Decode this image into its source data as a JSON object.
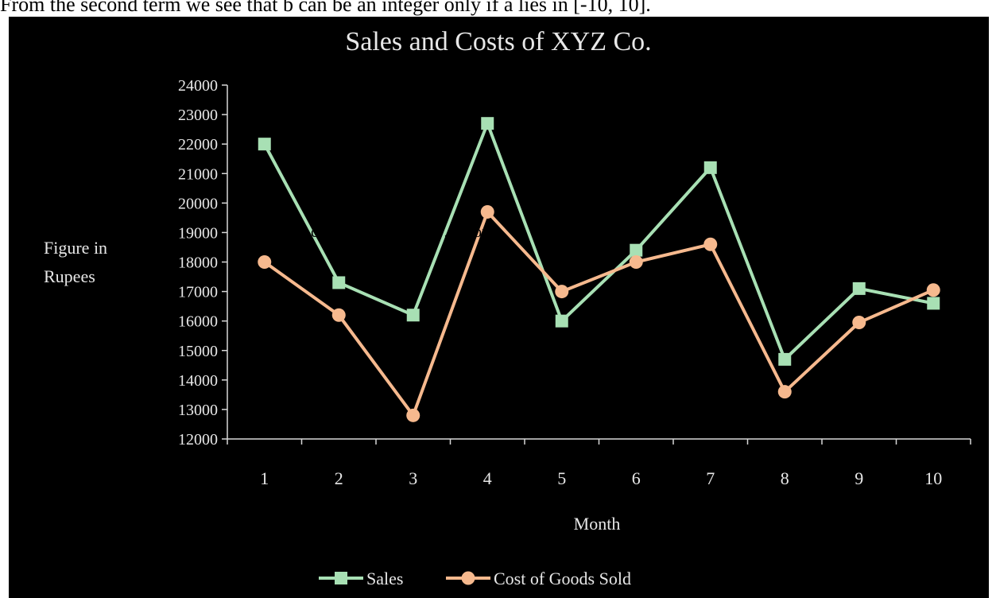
{
  "page": {
    "top_text": "From the second term we see that b can be an integer only if a lies in [-10, 10].",
    "overlay_text": "c… …f the u… …p… …or"
  },
  "chart_data": {
    "type": "line",
    "title": "Sales and Costs of XYZ Co.",
    "xlabel": "Month",
    "ylabel": "Figure in Rupees",
    "categories": [
      "1",
      "2",
      "3",
      "4",
      "5",
      "6",
      "7",
      "8",
      "9",
      "10"
    ],
    "ylim": [
      12000,
      24000
    ],
    "yticks": [
      12000,
      13000,
      14000,
      15000,
      16000,
      17000,
      18000,
      19000,
      20000,
      21000,
      22000,
      23000,
      24000
    ],
    "ytick_labels": [
      "12000",
      "13000",
      "14000",
      "15000",
      "16000",
      "17000",
      "18000",
      "19000",
      "20000",
      "21000",
      "22000",
      "23000",
      "24000"
    ],
    "grid": false,
    "legend_position": "bottom",
    "series": [
      {
        "name": "Sales",
        "color": "#a8e0b4",
        "marker": "square",
        "values": [
          22000,
          17300,
          16200,
          22700,
          16000,
          18400,
          21200,
          14700,
          17100,
          16600
        ]
      },
      {
        "name": "Cost of Goods Sold",
        "color": "#f6b98e",
        "marker": "circle",
        "values": [
          18000,
          16200,
          12800,
          19700,
          17000,
          18000,
          18600,
          13600,
          15950,
          17050
        ]
      }
    ]
  }
}
